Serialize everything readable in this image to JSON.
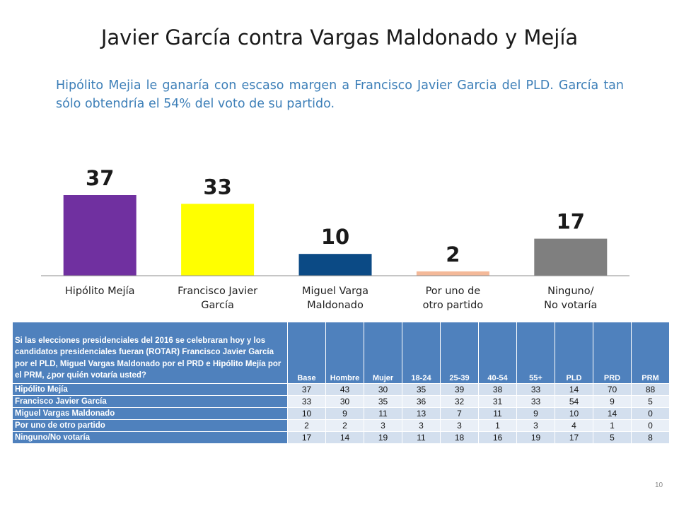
{
  "title": "Javier García contra Vargas Maldonado y Mejía",
  "subtitle": "Hipólito Mejia le ganaría con escaso margen a Francisco Javier Garcia del PLD. García tan sólo obtendría el 54% del voto de su partido.",
  "chart_data": {
    "type": "bar",
    "categories": [
      [
        "Hipólito Mejía"
      ],
      [
        "Francisco Javier",
        "García"
      ],
      [
        "Miguel Varga",
        "Maldonado"
      ],
      [
        "Por uno de",
        "otro partido"
      ],
      [
        "Ninguno/",
        "No votaría"
      ]
    ],
    "values": [
      37,
      33,
      10,
      2,
      17
    ],
    "colors": [
      "#7030a0",
      "#ffff00",
      "#0b4a85",
      "#f4b999",
      "#7f7f7f"
    ],
    "ylim": [
      0,
      40
    ],
    "grid": false,
    "data_labels": true
  },
  "table": {
    "question": "Si las elecciones presidenciales del 2016 se celebraran hoy y los candidatos presidenciales fueran (ROTAR) Francisco Javier García por el PLD, Miguel Vargas Maldonado por el PRD e Hipólito Mejía por el PRM, ¿por quién votaría usted?",
    "columns": [
      "Base",
      "Hombre",
      "Mujer",
      "18-24",
      "25-39",
      "40-54",
      "55+",
      "PLD",
      "PRD",
      "PRM"
    ],
    "rows": [
      {
        "label": "Hipólito Mejía",
        "values": [
          "37",
          "43",
          "30",
          "35",
          "39",
          "38",
          "33",
          "14",
          "70",
          "88"
        ]
      },
      {
        "label": "Francisco Javier García",
        "values": [
          "33",
          "30",
          "35",
          "36",
          "32",
          "31",
          "33",
          "54",
          "9",
          "5"
        ]
      },
      {
        "label": "Miguel Vargas Maldonado",
        "values": [
          "10",
          "9",
          "11",
          "13",
          "7",
          "11",
          "9",
          "10",
          "14",
          "0"
        ]
      },
      {
        "label": "Por uno de otro partido",
        "values": [
          "2",
          "2",
          "3",
          "3",
          "3",
          "1",
          "3",
          "4",
          "1",
          "0"
        ]
      },
      {
        "label": "Ninguno/No votaría",
        "values": [
          "17",
          "14",
          "19",
          "11",
          "18",
          "16",
          "19",
          "17",
          "5",
          "8"
        ]
      }
    ]
  },
  "page_number": "10"
}
